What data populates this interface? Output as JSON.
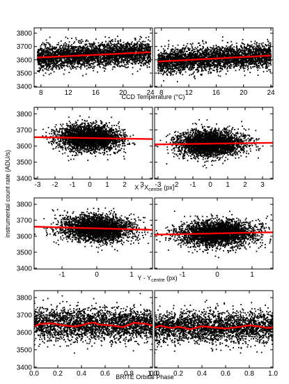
{
  "figure": {
    "ylabel": "instrumental count rate (ADU/s)",
    "rows": [
      {
        "xlabel": "CCD Temperature (°C)"
      },
      {
        "xlabel_main": "X - X",
        "xlabel_sub": "centre",
        "xlabel_unit": " (px)"
      },
      {
        "xlabel_main": "Y - Y",
        "xlabel_sub": "centre",
        "xlabel_unit": " (px)"
      },
      {
        "xlabel": "BRITE Orbital Phase"
      }
    ]
  },
  "chart_data": [
    {
      "type": "scatter",
      "row": 0,
      "col": 0,
      "xlabel": "CCD Temperature (°C)",
      "ylabel": "instrumental count rate (ADU/s)",
      "xlim": [
        7,
        24.3
      ],
      "ylim": [
        3395,
        3840
      ],
      "xticks": [
        8,
        12,
        16,
        20,
        24
      ],
      "yticks": [
        3400,
        3500,
        3600,
        3700,
        3800
      ],
      "cloud": {
        "x_range": [
          7.5,
          24
        ],
        "y_center": 3640,
        "y_spread": 45,
        "n_points": 3200
      },
      "fit": {
        "x": [
          7.5,
          24
        ],
        "y": [
          3617,
          3657
        ]
      }
    },
    {
      "type": "scatter",
      "row": 0,
      "col": 1,
      "xlim": [
        7,
        24.3
      ],
      "ylim": [
        3395,
        3840
      ],
      "xticks": [
        8,
        12,
        16,
        20,
        24
      ],
      "yticks": [
        3400,
        3500,
        3600,
        3700,
        3800
      ],
      "cloud": {
        "x_range": [
          7.5,
          24
        ],
        "y_center": 3610,
        "y_spread": 45,
        "n_points": 3200
      },
      "fit": {
        "x": [
          7.5,
          24
        ],
        "y": [
          3587,
          3632
        ]
      }
    },
    {
      "type": "scatter",
      "row": 1,
      "col": 0,
      "xlabel": "X - Xcentre (px)",
      "xlim": [
        -3.2,
        3.6
      ],
      "ylim": [
        3395,
        3840
      ],
      "xticks": [
        -3,
        -2,
        -1,
        0,
        1,
        2,
        3
      ],
      "yticks": [
        3400,
        3500,
        3600,
        3700,
        3800
      ],
      "cloud": {
        "x_center": 0,
        "x_spread": 0.9,
        "y_center": 3645,
        "y_spread": 40,
        "n_points": 3000
      },
      "fit": {
        "x": [
          -3.2,
          3.6
        ],
        "y": [
          3655,
          3643
        ]
      }
    },
    {
      "type": "scatter",
      "row": 1,
      "col": 1,
      "xlim": [
        -3.2,
        3.6
      ],
      "ylim": [
        3395,
        3840
      ],
      "xticks": [
        -3,
        -2,
        -1,
        0,
        1,
        2,
        3
      ],
      "yticks": [
        3400,
        3500,
        3600,
        3700,
        3800
      ],
      "cloud": {
        "x_center": 0,
        "x_spread": 0.95,
        "y_center": 3615,
        "y_spread": 40,
        "n_points": 3000
      },
      "fit": {
        "x": [
          -3.2,
          3.6
        ],
        "y": [
          3610,
          3620
        ]
      }
    },
    {
      "type": "scatter",
      "row": 2,
      "col": 0,
      "xlabel": "Y - Ycentre (px)",
      "xlim": [
        -1.8,
        1.6
      ],
      "ylim": [
        3395,
        3840
      ],
      "xticks": [
        -1.0,
        0.0,
        1.0
      ],
      "yticks": [
        3400,
        3500,
        3600,
        3700,
        3800
      ],
      "cloud": {
        "x_center": 0,
        "x_spread": 0.5,
        "y_center": 3655,
        "y_spread": 40,
        "n_points": 3000
      },
      "fit": {
        "x": [
          -1.8,
          1.6
        ],
        "y": [
          3660,
          3640
        ]
      }
    },
    {
      "type": "scatter",
      "row": 2,
      "col": 1,
      "xlim": [
        -1.8,
        1.6
      ],
      "ylim": [
        3395,
        3840
      ],
      "xticks": [
        -1.0,
        0.0,
        1.0
      ],
      "yticks": [
        3400,
        3500,
        3600,
        3700,
        3800
      ],
      "cloud": {
        "x_center": 0,
        "x_spread": 0.55,
        "y_center": 3615,
        "y_spread": 40,
        "n_points": 3000
      },
      "fit": {
        "x": [
          -1.8,
          1.6
        ],
        "y": [
          3610,
          3625
        ]
      }
    },
    {
      "type": "scatter",
      "row": 3,
      "col": 0,
      "xlabel": "BRITE Orbital Phase",
      "xlim": [
        0,
        1
      ],
      "ylim": [
        3395,
        3840
      ],
      "xticks": [
        0.0,
        0.2,
        0.4,
        0.6,
        0.8,
        1.0
      ],
      "yticks": [
        3400,
        3500,
        3600,
        3700,
        3800
      ],
      "cloud": {
        "x_range": [
          0,
          1
        ],
        "y_center": 3645,
        "y_spread": 45,
        "n_points": 2600
      },
      "fit": {
        "x": [
          0,
          0.05,
          0.15,
          0.25,
          0.35,
          0.45,
          0.5,
          0.55,
          0.65,
          0.75,
          0.85,
          0.95,
          1.0
        ],
        "y": [
          3635,
          3648,
          3652,
          3640,
          3633,
          3650,
          3656,
          3645,
          3640,
          3630,
          3655,
          3648,
          3638
        ]
      }
    },
    {
      "type": "scatter",
      "row": 3,
      "col": 1,
      "xlim": [
        0,
        1
      ],
      "ylim": [
        3395,
        3840
      ],
      "xticks": [
        0.0,
        0.2,
        0.4,
        0.6,
        0.8,
        1.0
      ],
      "yticks": [
        3400,
        3500,
        3600,
        3700,
        3800
      ],
      "cloud": {
        "x_range": [
          0,
          1
        ],
        "y_center": 3630,
        "y_spread": 45,
        "n_points": 2600
      },
      "fit": {
        "x": [
          0,
          0.05,
          0.1,
          0.15,
          0.2,
          0.3,
          0.4,
          0.5,
          0.6,
          0.7,
          0.8,
          0.9,
          0.95,
          1.0
        ],
        "y": [
          3628,
          3638,
          3630,
          3625,
          3632,
          3618,
          3635,
          3628,
          3622,
          3630,
          3640,
          3632,
          3625,
          3628
        ]
      }
    }
  ]
}
